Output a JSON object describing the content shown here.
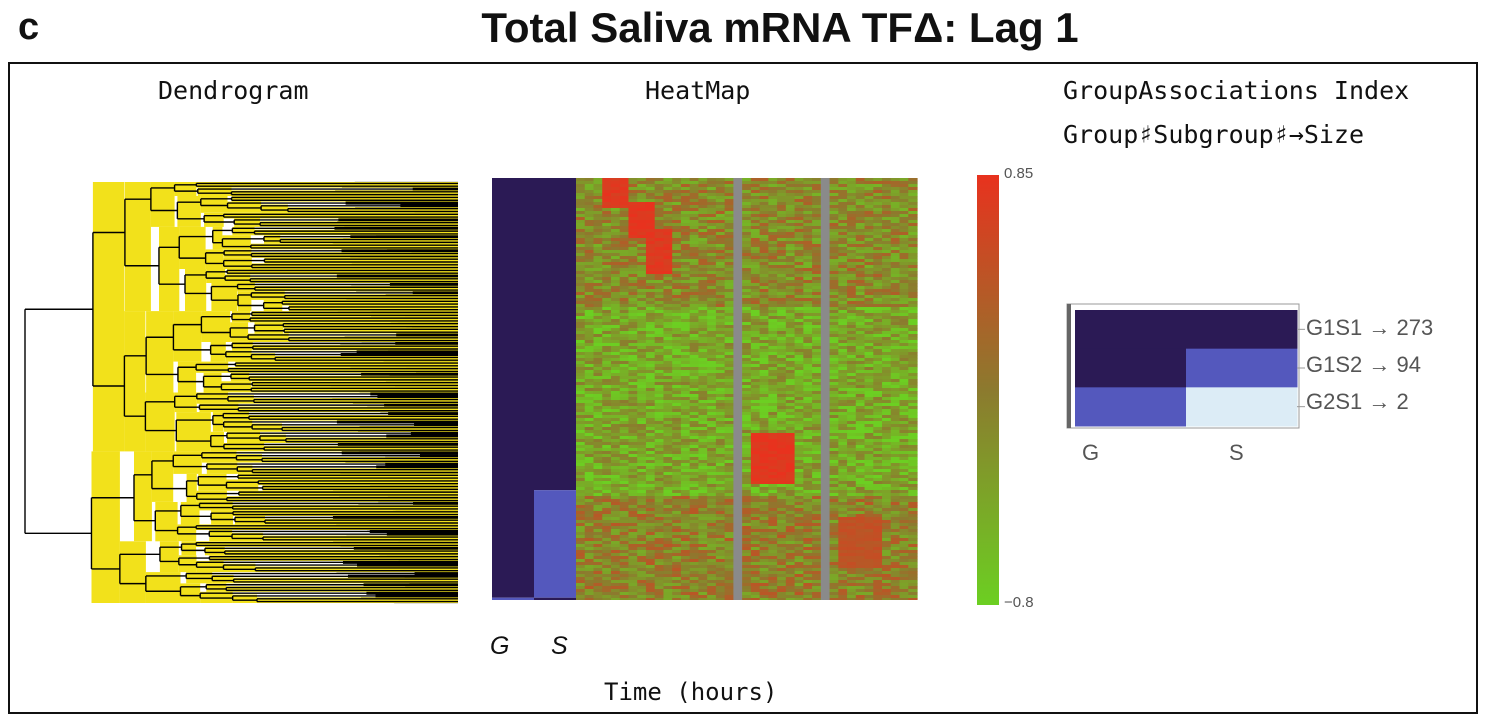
{
  "figure": {
    "panel_letter": "c",
    "title": "Total Saliva mRNA TFΔ: Lag 1",
    "dendrogram_title": "Dendrogram",
    "heatmap_title": "HeatMap",
    "group_title": "GroupAssociations Index",
    "group_subtitle": "Group♯Subgroup♯→Size",
    "group_axis_labels": [
      "G",
      "S"
    ],
    "x_label": "Time (hours)"
  },
  "colors": {
    "group_dark": "#2b1a55",
    "group_mid": "#5458bd",
    "group_light": "#dcecf6",
    "dendro_fill": "#f2e11b",
    "dendro_line": "#000000",
    "heat_high": "#e8321e",
    "heat_mid": "#8c7a2e",
    "heat_low": "#6ccf22",
    "missing": "#8a8a8a"
  },
  "chart_data": [
    {
      "type": "heatmap",
      "name_hint": "heatmap",
      "colorbar": {
        "max": 0.85,
        "min": -0.8,
        "max_label": "0.85",
        "min_label": "−0.8"
      },
      "group_columns": [
        "G",
        "S"
      ],
      "rows_total": 369,
      "row_groups": [
        {
          "label": "G1S1",
          "G": 1,
          "S": 1,
          "size": 273
        },
        {
          "label": "G1S2",
          "G": 1,
          "S": 2,
          "size": 94
        },
        {
          "label": "G2S1",
          "G": 2,
          "S": 1,
          "size": 2
        }
      ],
      "missing_columns": [
        18,
        28
      ],
      "time_columns": 39
    },
    {
      "type": "table",
      "name_hint": "group-associations",
      "rows": [
        {
          "label": "G1S1 → 273",
          "G": 1,
          "S": 1,
          "size": 273
        },
        {
          "label": "G1S2 → 94",
          "G": 1,
          "S": 2,
          "size": 94
        },
        {
          "label": "G2S1 → 2",
          "G": 2,
          "S": 1,
          "size": 2
        }
      ],
      "columns": [
        "G",
        "S"
      ]
    }
  ]
}
